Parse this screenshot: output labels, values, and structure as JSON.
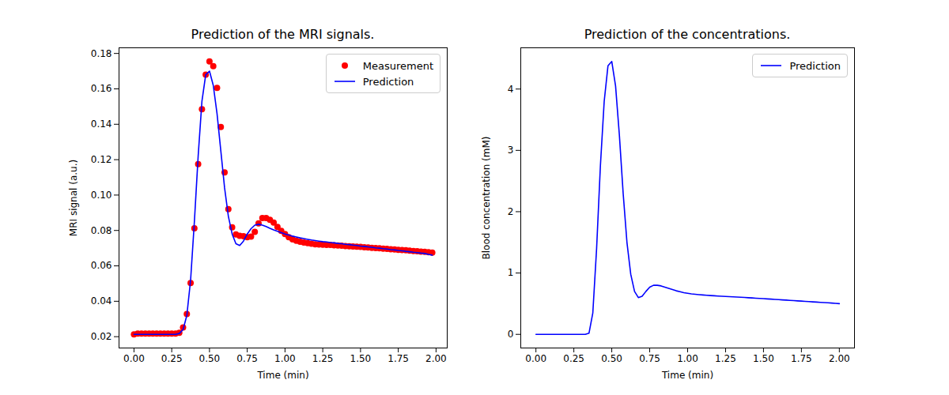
{
  "chart_data": [
    {
      "type": "line",
      "title": "Prediction of the MRI signals.",
      "x_label": "Time (min)",
      "y_label": "MRI signal (a.u.)",
      "x": [
        0,
        0.025,
        0.05,
        0.075,
        0.1,
        0.125,
        0.15,
        0.175,
        0.2,
        0.225,
        0.25,
        0.275,
        0.3,
        0.325,
        0.35,
        0.375,
        0.4,
        0.425,
        0.45,
        0.475,
        0.5,
        0.525,
        0.55,
        0.575,
        0.6,
        0.625,
        0.65,
        0.675,
        0.7,
        0.725,
        0.75,
        0.775,
        0.8,
        0.825,
        0.85,
        0.875,
        0.9,
        0.925,
        0.95,
        0.975,
        1.0,
        1.025,
        1.05,
        1.075,
        1.1,
        1.125,
        1.15,
        1.175,
        1.2,
        1.225,
        1.25,
        1.275,
        1.3,
        1.325,
        1.35,
        1.375,
        1.4,
        1.425,
        1.45,
        1.475,
        1.5,
        1.525,
        1.55,
        1.575,
        1.6,
        1.625,
        1.65,
        1.675,
        1.7,
        1.725,
        1.75,
        1.775,
        1.8,
        1.825,
        1.85,
        1.875,
        1.9,
        1.925,
        1.95,
        1.975
      ],
      "series": [
        {
          "name": "Measurement",
          "type": "scatter",
          "marker": "circle",
          "color": "red",
          "values": [
            0.0213,
            0.0218,
            0.0218,
            0.0217,
            0.0218,
            0.0217,
            0.0218,
            0.0217,
            0.0217,
            0.0218,
            0.0217,
            0.0218,
            0.0222,
            0.0252,
            0.0328,
            0.0503,
            0.0812,
            0.1175,
            0.1485,
            0.168,
            0.1755,
            0.1728,
            0.1605,
            0.1385,
            0.1128,
            0.092,
            0.0818,
            0.0778,
            0.077,
            0.0768,
            0.0762,
            0.0765,
            0.0792,
            0.084,
            0.087,
            0.087,
            0.086,
            0.0845,
            0.082,
            0.0798,
            0.078,
            0.0762,
            0.075,
            0.0742,
            0.0736,
            0.0732,
            0.0728,
            0.0725,
            0.0722,
            0.0721,
            0.072,
            0.0719,
            0.0718,
            0.0716,
            0.0715,
            0.0714,
            0.0712,
            0.0711,
            0.071,
            0.0708,
            0.0707,
            0.0705,
            0.0704,
            0.0702,
            0.0701,
            0.0699,
            0.0697,
            0.0696,
            0.0694,
            0.0693,
            0.0691,
            0.0689,
            0.0688,
            0.0686,
            0.0684,
            0.0683,
            0.0681,
            0.0679,
            0.0677,
            0.0675
          ]
        },
        {
          "name": "Prediction",
          "type": "line",
          "line_style": "solid",
          "color": "blue",
          "values": [
            0.0213,
            0.0213,
            0.0213,
            0.0213,
            0.0213,
            0.0213,
            0.0213,
            0.0213,
            0.0213,
            0.0213,
            0.0213,
            0.0213,
            0.0218,
            0.024,
            0.032,
            0.052,
            0.085,
            0.122,
            0.153,
            0.168,
            0.17,
            0.162,
            0.146,
            0.125,
            0.104,
            0.088,
            0.078,
            0.0725,
            0.0715,
            0.074,
            0.078,
            0.081,
            0.083,
            0.0835,
            0.083,
            0.0822,
            0.0812,
            0.0803,
            0.0795,
            0.0788,
            0.078,
            0.0774,
            0.0768,
            0.0763,
            0.0758,
            0.0754,
            0.075,
            0.0746,
            0.0743,
            0.074,
            0.0737,
            0.0735,
            0.0732,
            0.073,
            0.0727,
            0.0725,
            0.0722,
            0.072,
            0.0717,
            0.0715,
            0.0712,
            0.071,
            0.0707,
            0.0705,
            0.0702,
            0.07,
            0.0697,
            0.0695,
            0.0692,
            0.069,
            0.0687,
            0.0685,
            0.0682,
            0.068,
            0.0677,
            0.0675,
            0.0672,
            0.067,
            0.0665,
            0.066
          ]
        }
      ],
      "xlim": [
        -0.099,
        2.074
      ],
      "xticks": [
        {
          "value": 0,
          "label": "0.00"
        },
        0.25,
        {
          "value": 0.5,
          "label": "0.50"
        },
        0.75,
        {
          "value": 1,
          "label": "1.00"
        },
        1.25,
        {
          "value": 1.5,
          "label": "1.50"
        },
        1.75,
        {
          "value": 2,
          "label": "2.00"
        }
      ],
      "ylim": [
        0.0136,
        0.1832
      ],
      "yticks": [
        0.02,
        0.04,
        0.06,
        0.08,
        {
          "value": 0.1,
          "label": "0.10"
        },
        0.12,
        0.14,
        0.16,
        0.18
      ],
      "grid": false,
      "legend": "upper right"
    },
    {
      "type": "line",
      "title": "Prediction of the concentrations.",
      "x_label": "Time (min)",
      "y_label": "Blood concentration (mM)",
      "x": [
        0,
        0.025,
        0.05,
        0.075,
        0.1,
        0.125,
        0.15,
        0.175,
        0.2,
        0.225,
        0.25,
        0.275,
        0.3,
        0.325,
        0.35,
        0.375,
        0.4,
        0.425,
        0.45,
        0.475,
        0.5,
        0.525,
        0.55,
        0.575,
        0.6,
        0.625,
        0.65,
        0.675,
        0.7,
        0.725,
        0.75,
        0.775,
        0.8,
        0.825,
        0.85,
        0.875,
        0.9,
        0.925,
        0.95,
        0.975,
        1.0,
        1.025,
        1.05,
        1.075,
        1.1,
        1.125,
        1.15,
        1.175,
        1.2,
        1.225,
        1.25,
        1.275,
        1.3,
        1.325,
        1.35,
        1.375,
        1.4,
        1.425,
        1.45,
        1.475,
        1.5,
        1.525,
        1.55,
        1.575,
        1.6,
        1.625,
        1.65,
        1.675,
        1.7,
        1.725,
        1.75,
        1.775,
        1.8,
        1.825,
        1.85,
        1.875,
        1.9,
        1.925,
        1.95,
        1.975,
        2.0
      ],
      "series": [
        {
          "name": "Prediction",
          "type": "line",
          "line_style": "solid",
          "color": "blue",
          "values": [
            0,
            0,
            0,
            0,
            0,
            0,
            0,
            0,
            0,
            0,
            0,
            0,
            0,
            0,
            0.02,
            0.35,
            1.4,
            2.75,
            3.8,
            4.38,
            4.45,
            4.05,
            3.25,
            2.3,
            1.5,
            0.98,
            0.7,
            0.6,
            0.62,
            0.7,
            0.77,
            0.8,
            0.8,
            0.79,
            0.77,
            0.75,
            0.73,
            0.71,
            0.695,
            0.68,
            0.67,
            0.66,
            0.653,
            0.647,
            0.642,
            0.637,
            0.633,
            0.629,
            0.625,
            0.622,
            0.618,
            0.615,
            0.612,
            0.608,
            0.605,
            0.601,
            0.597,
            0.594,
            0.59,
            0.586,
            0.582,
            0.578,
            0.574,
            0.57,
            0.566,
            0.562,
            0.558,
            0.554,
            0.55,
            0.546,
            0.542,
            0.538,
            0.534,
            0.53,
            0.526,
            0.522,
            0.518,
            0.514,
            0.51,
            0.505,
            0.5
          ]
        }
      ],
      "xlim": [
        -0.1,
        2.1
      ],
      "xticks": [
        {
          "value": 0,
          "label": "0.00"
        },
        0.25,
        {
          "value": 0.5,
          "label": "0.50"
        },
        0.75,
        {
          "value": 1,
          "label": "1.00"
        },
        1.25,
        {
          "value": 1.5,
          "label": "1.50"
        },
        1.75,
        {
          "value": 2,
          "label": "2.00"
        }
      ],
      "ylim": [
        -0.2225,
        4.6725
      ],
      "yticks": [
        0,
        1,
        2,
        3,
        4
      ],
      "grid": false,
      "legend": "upper right"
    }
  ]
}
